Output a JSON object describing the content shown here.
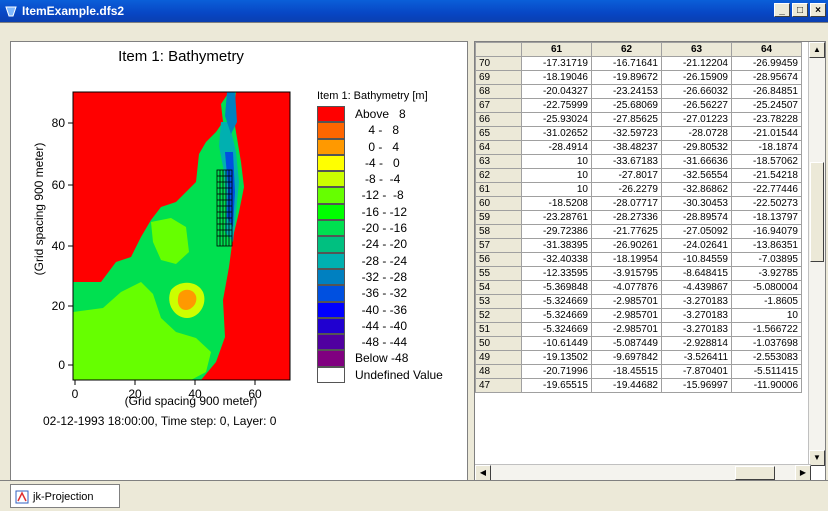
{
  "window": {
    "title": "ItemExample.dfs2",
    "buttons": [
      "_",
      "□",
      "×"
    ]
  },
  "plot": {
    "title": "Item 1: Bathymetry",
    "y_label": "(Grid spacing 900 meter)",
    "x_label": "(Grid spacing 900 meter)",
    "y_ticks": [
      "0",
      "20",
      "40",
      "60",
      "80"
    ],
    "x_ticks": [
      "0",
      "20",
      "40",
      "60"
    ],
    "status": "02-12-1993 18:00:00, Time step: 0, Layer: 0"
  },
  "legend": {
    "title": "Item 1: Bathymetry [m]",
    "entries": [
      {
        "label": "Above   8",
        "color": "#ff0000"
      },
      {
        "label": "    4 -   8",
        "color": "#ff6600"
      },
      {
        "label": "    0 -   4",
        "color": "#ff9900"
      },
      {
        "label": "   -4 -   0",
        "color": "#ffff00"
      },
      {
        "label": "   -8 -  -4",
        "color": "#ccff00"
      },
      {
        "label": "  -12 -  -8",
        "color": "#66ff00"
      },
      {
        "label": "  -16 - -12",
        "color": "#00ff00"
      },
      {
        "label": "  -20 - -16",
        "color": "#00e050"
      },
      {
        "label": "  -24 - -20",
        "color": "#00c080"
      },
      {
        "label": "  -28 - -24",
        "color": "#00b0b0"
      },
      {
        "label": "  -32 - -28",
        "color": "#0080c0"
      },
      {
        "label": "  -36 - -32",
        "color": "#0050e0"
      },
      {
        "label": "  -40 - -36",
        "color": "#0000ff"
      },
      {
        "label": "  -44 - -40",
        "color": "#2000d0"
      },
      {
        "label": "  -48 - -44",
        "color": "#5000a0"
      },
      {
        "label": "Below -48",
        "color": "#800080"
      },
      {
        "label": "Undefined Value",
        "color": "#ffffff"
      }
    ]
  },
  "grid": {
    "columns": [
      "61",
      "62",
      "63",
      "64"
    ],
    "rows": [
      {
        "id": "70",
        "values": [
          "-17.31719",
          "-16.71641",
          "-21.12204",
          "-26.99459"
        ]
      },
      {
        "id": "69",
        "values": [
          "-18.19046",
          "-19.89672",
          "-26.15909",
          "-28.95674"
        ]
      },
      {
        "id": "68",
        "values": [
          "-20.04327",
          "-23.24153",
          "-26.66032",
          "-26.84851"
        ]
      },
      {
        "id": "67",
        "values": [
          "-22.75999",
          "-25.68069",
          "-26.56227",
          "-25.24507"
        ]
      },
      {
        "id": "66",
        "values": [
          "-25.93024",
          "-27.85625",
          "-27.01223",
          "-23.78228"
        ]
      },
      {
        "id": "65",
        "values": [
          "-31.02652",
          "-32.59723",
          "-28.0728",
          "-21.01544"
        ]
      },
      {
        "id": "64",
        "values": [
          "-28.4914",
          "-38.48237",
          "-29.80532",
          "-18.1874"
        ]
      },
      {
        "id": "63",
        "values": [
          "10",
          "-33.67183",
          "-31.66636",
          "-18.57062"
        ]
      },
      {
        "id": "62",
        "values": [
          "10",
          "-27.8017",
          "-32.56554",
          "-21.54218"
        ]
      },
      {
        "id": "61",
        "values": [
          "10",
          "-26.2279",
          "-32.86862",
          "-22.77446"
        ]
      },
      {
        "id": "60",
        "values": [
          "-18.5208",
          "-28.07717",
          "-30.30453",
          "-22.50273"
        ]
      },
      {
        "id": "59",
        "values": [
          "-23.28761",
          "-28.27336",
          "-28.89574",
          "-18.13797"
        ]
      },
      {
        "id": "58",
        "values": [
          "-29.72386",
          "-21.77625",
          "-27.05092",
          "-16.94079"
        ]
      },
      {
        "id": "57",
        "values": [
          "-31.38395",
          "-26.90261",
          "-24.02641",
          "-13.86351"
        ]
      },
      {
        "id": "56",
        "values": [
          "-32.40338",
          "-18.19954",
          "-10.84559",
          "-7.03895"
        ]
      },
      {
        "id": "55",
        "values": [
          "-12.33595",
          "-3.915795",
          "-8.648415",
          "-3.92785"
        ]
      },
      {
        "id": "54",
        "values": [
          "-5.369848",
          "-4.077876",
          "-4.439867",
          "-5.080004"
        ]
      },
      {
        "id": "53",
        "values": [
          "-5.324669",
          "-2.985701",
          "-3.270183",
          "-1.8605"
        ]
      },
      {
        "id": "52",
        "values": [
          "-5.324669",
          "-2.985701",
          "-3.270183",
          "10"
        ]
      },
      {
        "id": "51",
        "values": [
          "-5.324669",
          "-2.985701",
          "-3.270183",
          "-1.566722"
        ]
      },
      {
        "id": "50",
        "values": [
          "-10.61449",
          "-5.087449",
          "-2.928814",
          "-1.037698"
        ]
      },
      {
        "id": "49",
        "values": [
          "-19.13502",
          "-9.697842",
          "-3.526411",
          "-2.553083"
        ]
      },
      {
        "id": "48",
        "values": [
          "-20.71996",
          "-18.45515",
          "-7.870401",
          "-5.511415"
        ]
      },
      {
        "id": "47",
        "values": [
          "-19.65515",
          "-19.44682",
          "-15.96997",
          "-11.90006"
        ]
      }
    ]
  },
  "tab": {
    "label": "jk-Projection"
  }
}
